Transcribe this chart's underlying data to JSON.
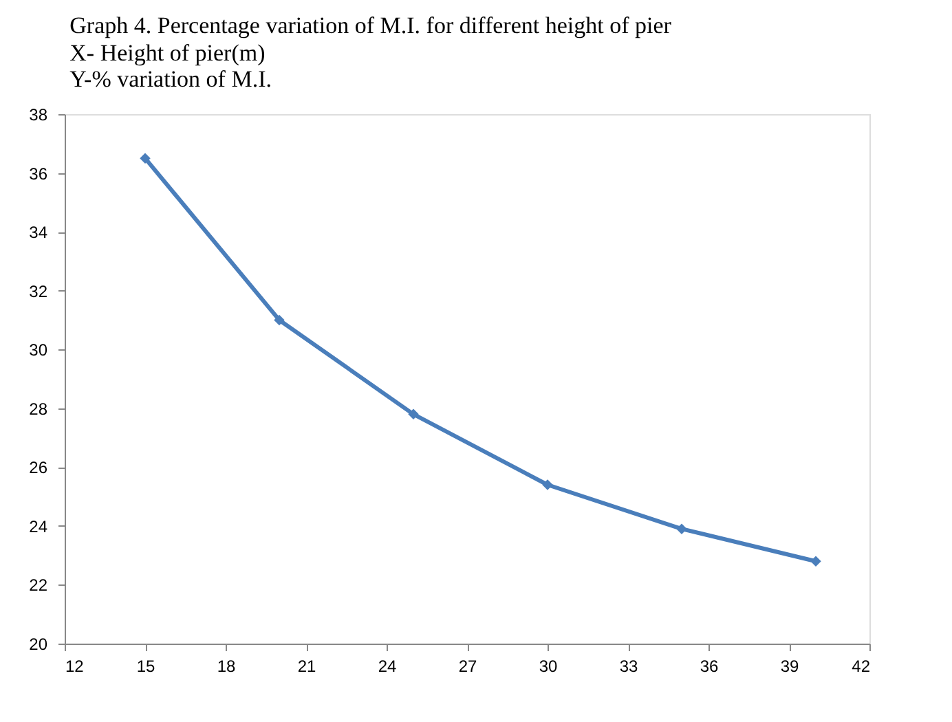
{
  "chart_data": {
    "type": "line",
    "title": "Graph 4. Percentage variation of M.I.  for different height of pier",
    "xlabel": "X- Height of pier(m)",
    "ylabel": "Y-% variation of M.I.",
    "x": [
      15,
      20,
      25,
      30,
      35,
      40
    ],
    "series": [
      {
        "color": "#4a7ebb",
        "values": [
          36.5,
          31.0,
          27.8,
          25.4,
          23.9,
          22.8
        ]
      }
    ],
    "xlim": [
      12,
      42
    ],
    "xticks": [
      12,
      15,
      18,
      21,
      24,
      27,
      30,
      33,
      36,
      39,
      42
    ],
    "ylim": [
      20,
      38
    ],
    "yticks": [
      20,
      22,
      24,
      26,
      28,
      30,
      32,
      34,
      36,
      38
    ],
    "grid": false,
    "marker": "diamond",
    "line_style": "solid"
  }
}
